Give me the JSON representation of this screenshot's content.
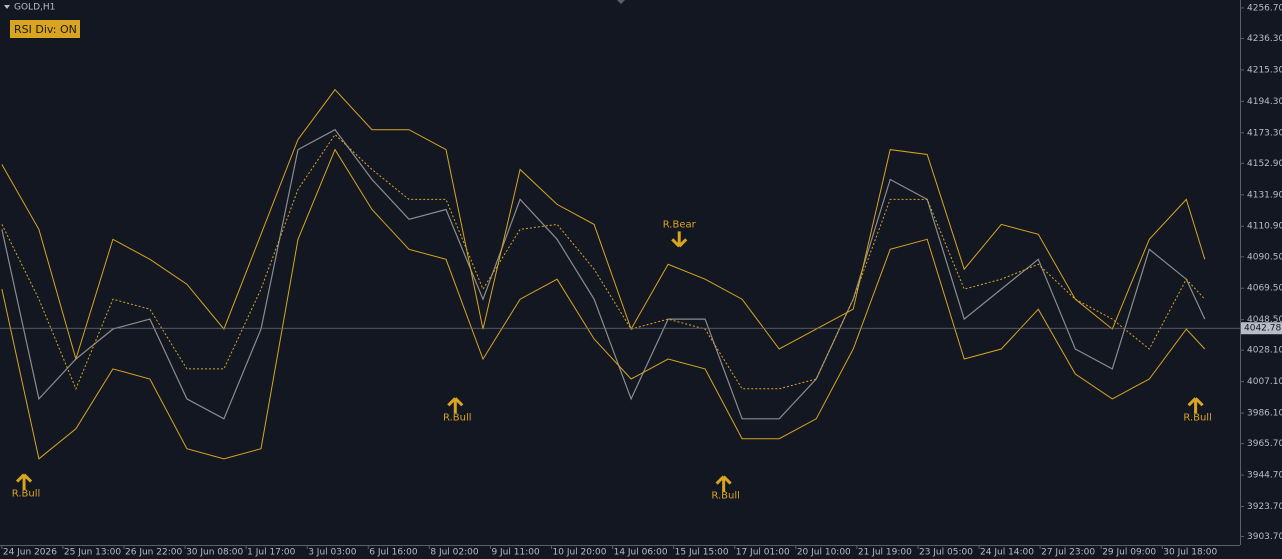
{
  "chart_data": {
    "type": "line",
    "title": "GOLD,H1",
    "button": "RSI Div: ON",
    "x": [
      0,
      20,
      40,
      60,
      80,
      100,
      120,
      140,
      160,
      180,
      200,
      220,
      240,
      260,
      280,
      300,
      320,
      340,
      360,
      380,
      400,
      420,
      440,
      460,
      480,
      500,
      520,
      540,
      560,
      580,
      600,
      620,
      640,
      650
    ],
    "series": [
      {
        "color": "#8c8c8c",
        "style": "solid",
        "values": [
          4108.8,
          3995.6,
          4022.2,
          4042.2,
          4048.9,
          3995.6,
          3982.3,
          4042.2,
          4162.1,
          4175.4,
          4142.1,
          4115.5,
          4122.1,
          4062.2,
          4128.8,
          4102.2,
          4062.2,
          3995.6,
          4048.9,
          4048.9,
          3982.3,
          3982.3,
          4008.9,
          4062.2,
          4142.1,
          4128.8,
          4048.9,
          4068.9,
          4088.8,
          4028.9,
          4015.6,
          4095.5,
          4075.5,
          4048.9
        ]
      },
      {
        "color": "#d9a520",
        "style": "solid",
        "values": [
          4152.1,
          4108.8,
          4022.2,
          4102.2,
          4088.8,
          4072.2,
          4042.2,
          4105.5,
          4168.8,
          4202.1,
          4175.4,
          4175.4,
          4162.1,
          4042.2,
          4148.8,
          4125.5,
          4112.1,
          4042.2,
          4085.5,
          4075.5,
          4062.2,
          4028.9,
          4042.2,
          4055.5,
          4162.1,
          4158.8,
          4082.2,
          4112.1,
          4105.5,
          4062.2,
          4042.2,
          4102.2,
          4128.8,
          4088.8
        ]
      },
      {
        "color": "#d9a520",
        "style": "dashed",
        "values": [
          4112.1,
          4062.2,
          4002.3,
          4062.2,
          4055.5,
          4015.6,
          4015.6,
          4068.9,
          4135.5,
          4172.1,
          4148.8,
          4128.8,
          4128.8,
          4068.9,
          4108.8,
          4112.1,
          4082.2,
          4042.2,
          4048.9,
          4042.2,
          4002.3,
          4002.3,
          4008.9,
          4062.2,
          4128.8,
          4128.8,
          4068.9,
          4075.5,
          4085.5,
          4062.2,
          4048.9,
          4028.9,
          4075.5,
          4062.2
        ]
      },
      {
        "color": "#d9a520",
        "style": "solid",
        "values": [
          4068.9,
          3955.6,
          3975.6,
          4015.6,
          4008.9,
          3962.3,
          3955.6,
          3962.3,
          4102.2,
          4162.1,
          4122.1,
          4095.5,
          4088.8,
          4022.2,
          4062.2,
          4075.5,
          4035.6,
          4008.9,
          4022.2,
          4015.6,
          3969.0,
          3969.0,
          3982.3,
          4028.9,
          4095.5,
          4102.2,
          4022.2,
          4028.9,
          4055.5,
          4012.2,
          3995.6,
          4008.9,
          4042.2,
          4028.9
        ]
      }
    ],
    "current_price": 4042.78,
    "annotations": [
      {
        "x": 12,
        "y": 3939,
        "direction": "up",
        "label": "R.Bull"
      },
      {
        "x": 245,
        "y": 3990,
        "direction": "up",
        "label": "R.Bull"
      },
      {
        "x": 366,
        "y": 4103.5,
        "direction": "down",
        "label": "R.Bear"
      },
      {
        "x": 390,
        "y": 3937.7,
        "direction": "up",
        "label": "R.Bull"
      },
      {
        "x": 645,
        "y": 3990,
        "direction": "up",
        "label": "R.Bull"
      }
    ],
    "xlim": [
      -1,
      669
    ],
    "ylim": [
      3898,
      4262
    ],
    "xticks": [
      {
        "value": 0,
        "label": "24 Jun 2026"
      },
      {
        "value": 33,
        "label": "25 Jun 13:00"
      },
      {
        "value": 66,
        "label": "26 Jun 22:00"
      },
      {
        "value": 99,
        "label": "30 Jun 08:00"
      },
      {
        "value": 132,
        "label": "1 Jul 17:00"
      },
      {
        "value": 165,
        "label": "3 Jul 03:00"
      },
      {
        "value": 198,
        "label": "6 Jul 16:00"
      },
      {
        "value": 231,
        "label": "8 Jul 02:00"
      },
      {
        "value": 264,
        "label": "9 Jul 11:00"
      },
      {
        "value": 297,
        "label": "10 Jul 20:00"
      },
      {
        "value": 330,
        "label": "14 Jul 06:00"
      },
      {
        "value": 363,
        "label": "15 Jul 15:00"
      },
      {
        "value": 396,
        "label": "17 Jul 01:00"
      },
      {
        "value": 429,
        "label": "20 Jul 10:00"
      },
      {
        "value": 462,
        "label": "21 Jul 19:00"
      },
      {
        "value": 495,
        "label": "23 Jul 05:00"
      },
      {
        "value": 528,
        "label": "24 Jul 14:00"
      },
      {
        "value": 561,
        "label": "27 Jul 23:00"
      },
      {
        "value": 594,
        "label": "29 Jul 09:00"
      },
      {
        "value": 627,
        "label": "30 Jul 18:00"
      }
    ],
    "yticks": [
      {
        "value": 4256.7,
        "label": "4256.70"
      },
      {
        "value": 4236.3,
        "label": "4236.30"
      },
      {
        "value": 4215.3,
        "label": "4215.30"
      },
      {
        "value": 4194.3,
        "label": "4194.30"
      },
      {
        "value": 4173.3,
        "label": "4173.30"
      },
      {
        "value": 4152.9,
        "label": "4152.90"
      },
      {
        "value": 4131.9,
        "label": "4131.90"
      },
      {
        "value": 4110.9,
        "label": "4110.90"
      },
      {
        "value": 4090.5,
        "label": "4090.50"
      },
      {
        "value": 4069.5,
        "label": "4069.50"
      },
      {
        "value": 4048.5,
        "label": "4048.50"
      },
      {
        "value": 4028.1,
        "label": "4028.10"
      },
      {
        "value": 4007.1,
        "label": "4007.10"
      },
      {
        "value": 3986.1,
        "label": "3986.10"
      },
      {
        "value": 3965.7,
        "label": "3965.70"
      },
      {
        "value": 3944.7,
        "label": "3944.70"
      },
      {
        "value": 3923.7,
        "label": "3923.70"
      },
      {
        "value": 3903.7,
        "label": "3903.70"
      }
    ],
    "grid": false
  }
}
